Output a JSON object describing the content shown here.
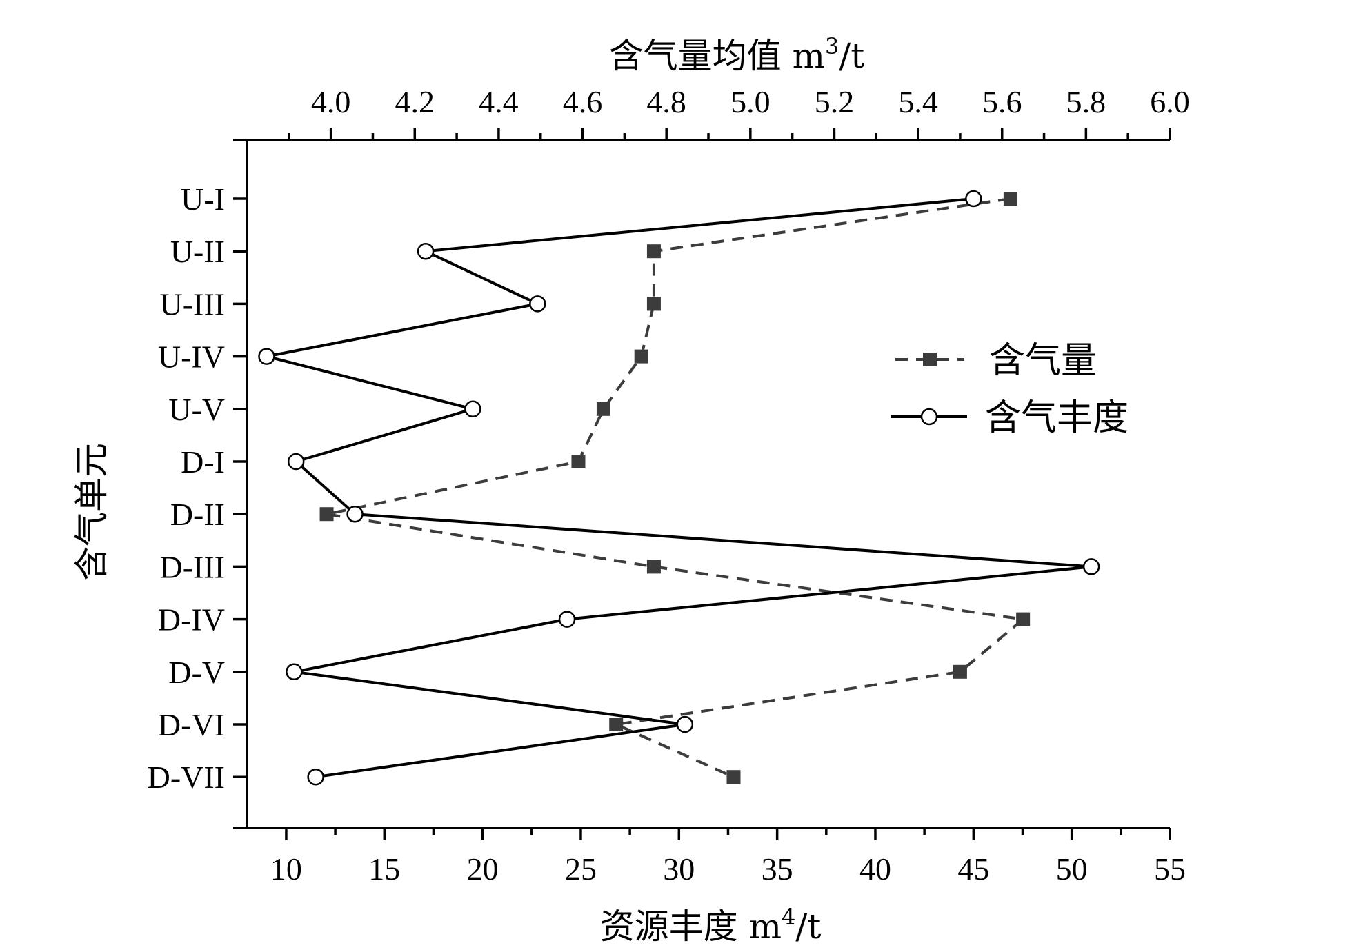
{
  "chart_data": {
    "type": "line",
    "categories": [
      "U-I",
      "U-II",
      "U-III",
      "U-IV",
      "U-V",
      "D-I",
      "D-II",
      "D-III",
      "D-IV",
      "D-V",
      "D-VI",
      "D-VII"
    ],
    "y_axis": {
      "label": "含气单元"
    },
    "x_top": {
      "label_main": "含气量均值 m",
      "label_sup": "3",
      "label_tail": "/t",
      "ticks": [
        "4.0",
        "4.2",
        "4.4",
        "4.6",
        "4.8",
        "5.0",
        "5.2",
        "5.4",
        "5.6",
        "5.8",
        "6.0"
      ],
      "xlim": [
        3.8,
        6.0
      ]
    },
    "x_bottom": {
      "label_main": "资源丰度 m",
      "label_sup": "4",
      "label_tail": "/t",
      "ticks": [
        "10",
        "15",
        "20",
        "25",
        "30",
        "35",
        "40",
        "45",
        "50",
        "55"
      ],
      "xlim": [
        8,
        55
      ]
    },
    "series": [
      {
        "name": "含气量",
        "axis": "top",
        "marker": "filled-square",
        "line": "dashed",
        "color": "#3c3c3c",
        "values": [
          5.62,
          4.77,
          4.77,
          4.74,
          4.65,
          4.59,
          3.99,
          4.77,
          5.65,
          5.5,
          4.68,
          4.96
        ]
      },
      {
        "name": "含气丰度",
        "axis": "bottom",
        "marker": "open-circle",
        "line": "solid",
        "color": "#000000",
        "values": [
          45.0,
          17.1,
          22.8,
          9.0,
          19.5,
          10.5,
          13.5,
          51.0,
          24.3,
          10.4,
          30.3,
          11.5
        ]
      }
    ],
    "legend": {
      "placement": "right-middle",
      "entries": [
        "含气量",
        "含气丰度"
      ]
    }
  }
}
